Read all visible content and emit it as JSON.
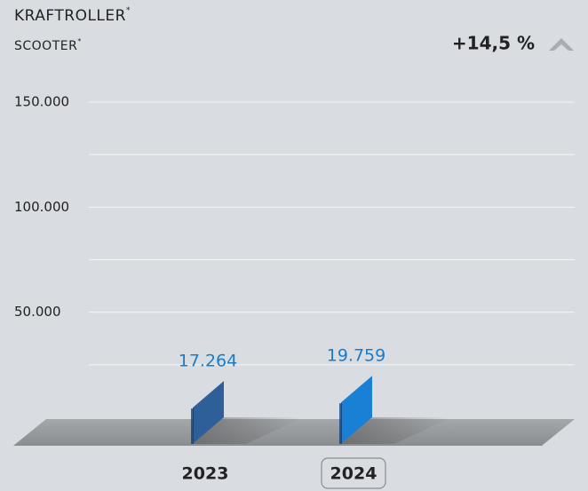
{
  "chart_data": {
    "type": "bar3d",
    "title": "KRAFTROLLER",
    "subtitle": "SCOOTER",
    "footnote_mark": "*",
    "change": "+14,5 %",
    "categories": [
      "2023",
      "2024"
    ],
    "values": [
      17264,
      19759
    ],
    "value_labels": [
      "17.264",
      "19.759"
    ],
    "colors": [
      "#2f5f98",
      "#1a80d6"
    ],
    "label_color": "#1a7cc9",
    "selected": 1,
    "ylim": [
      0,
      150000
    ],
    "yticks": [
      {
        "value": 50000,
        "label": "50.000"
      },
      {
        "value": 100000,
        "label": "100.000"
      },
      {
        "value": 150000,
        "label": "150.000"
      }
    ],
    "minor_yticks": [
      25000,
      75000,
      125000
    ],
    "grid": true
  }
}
